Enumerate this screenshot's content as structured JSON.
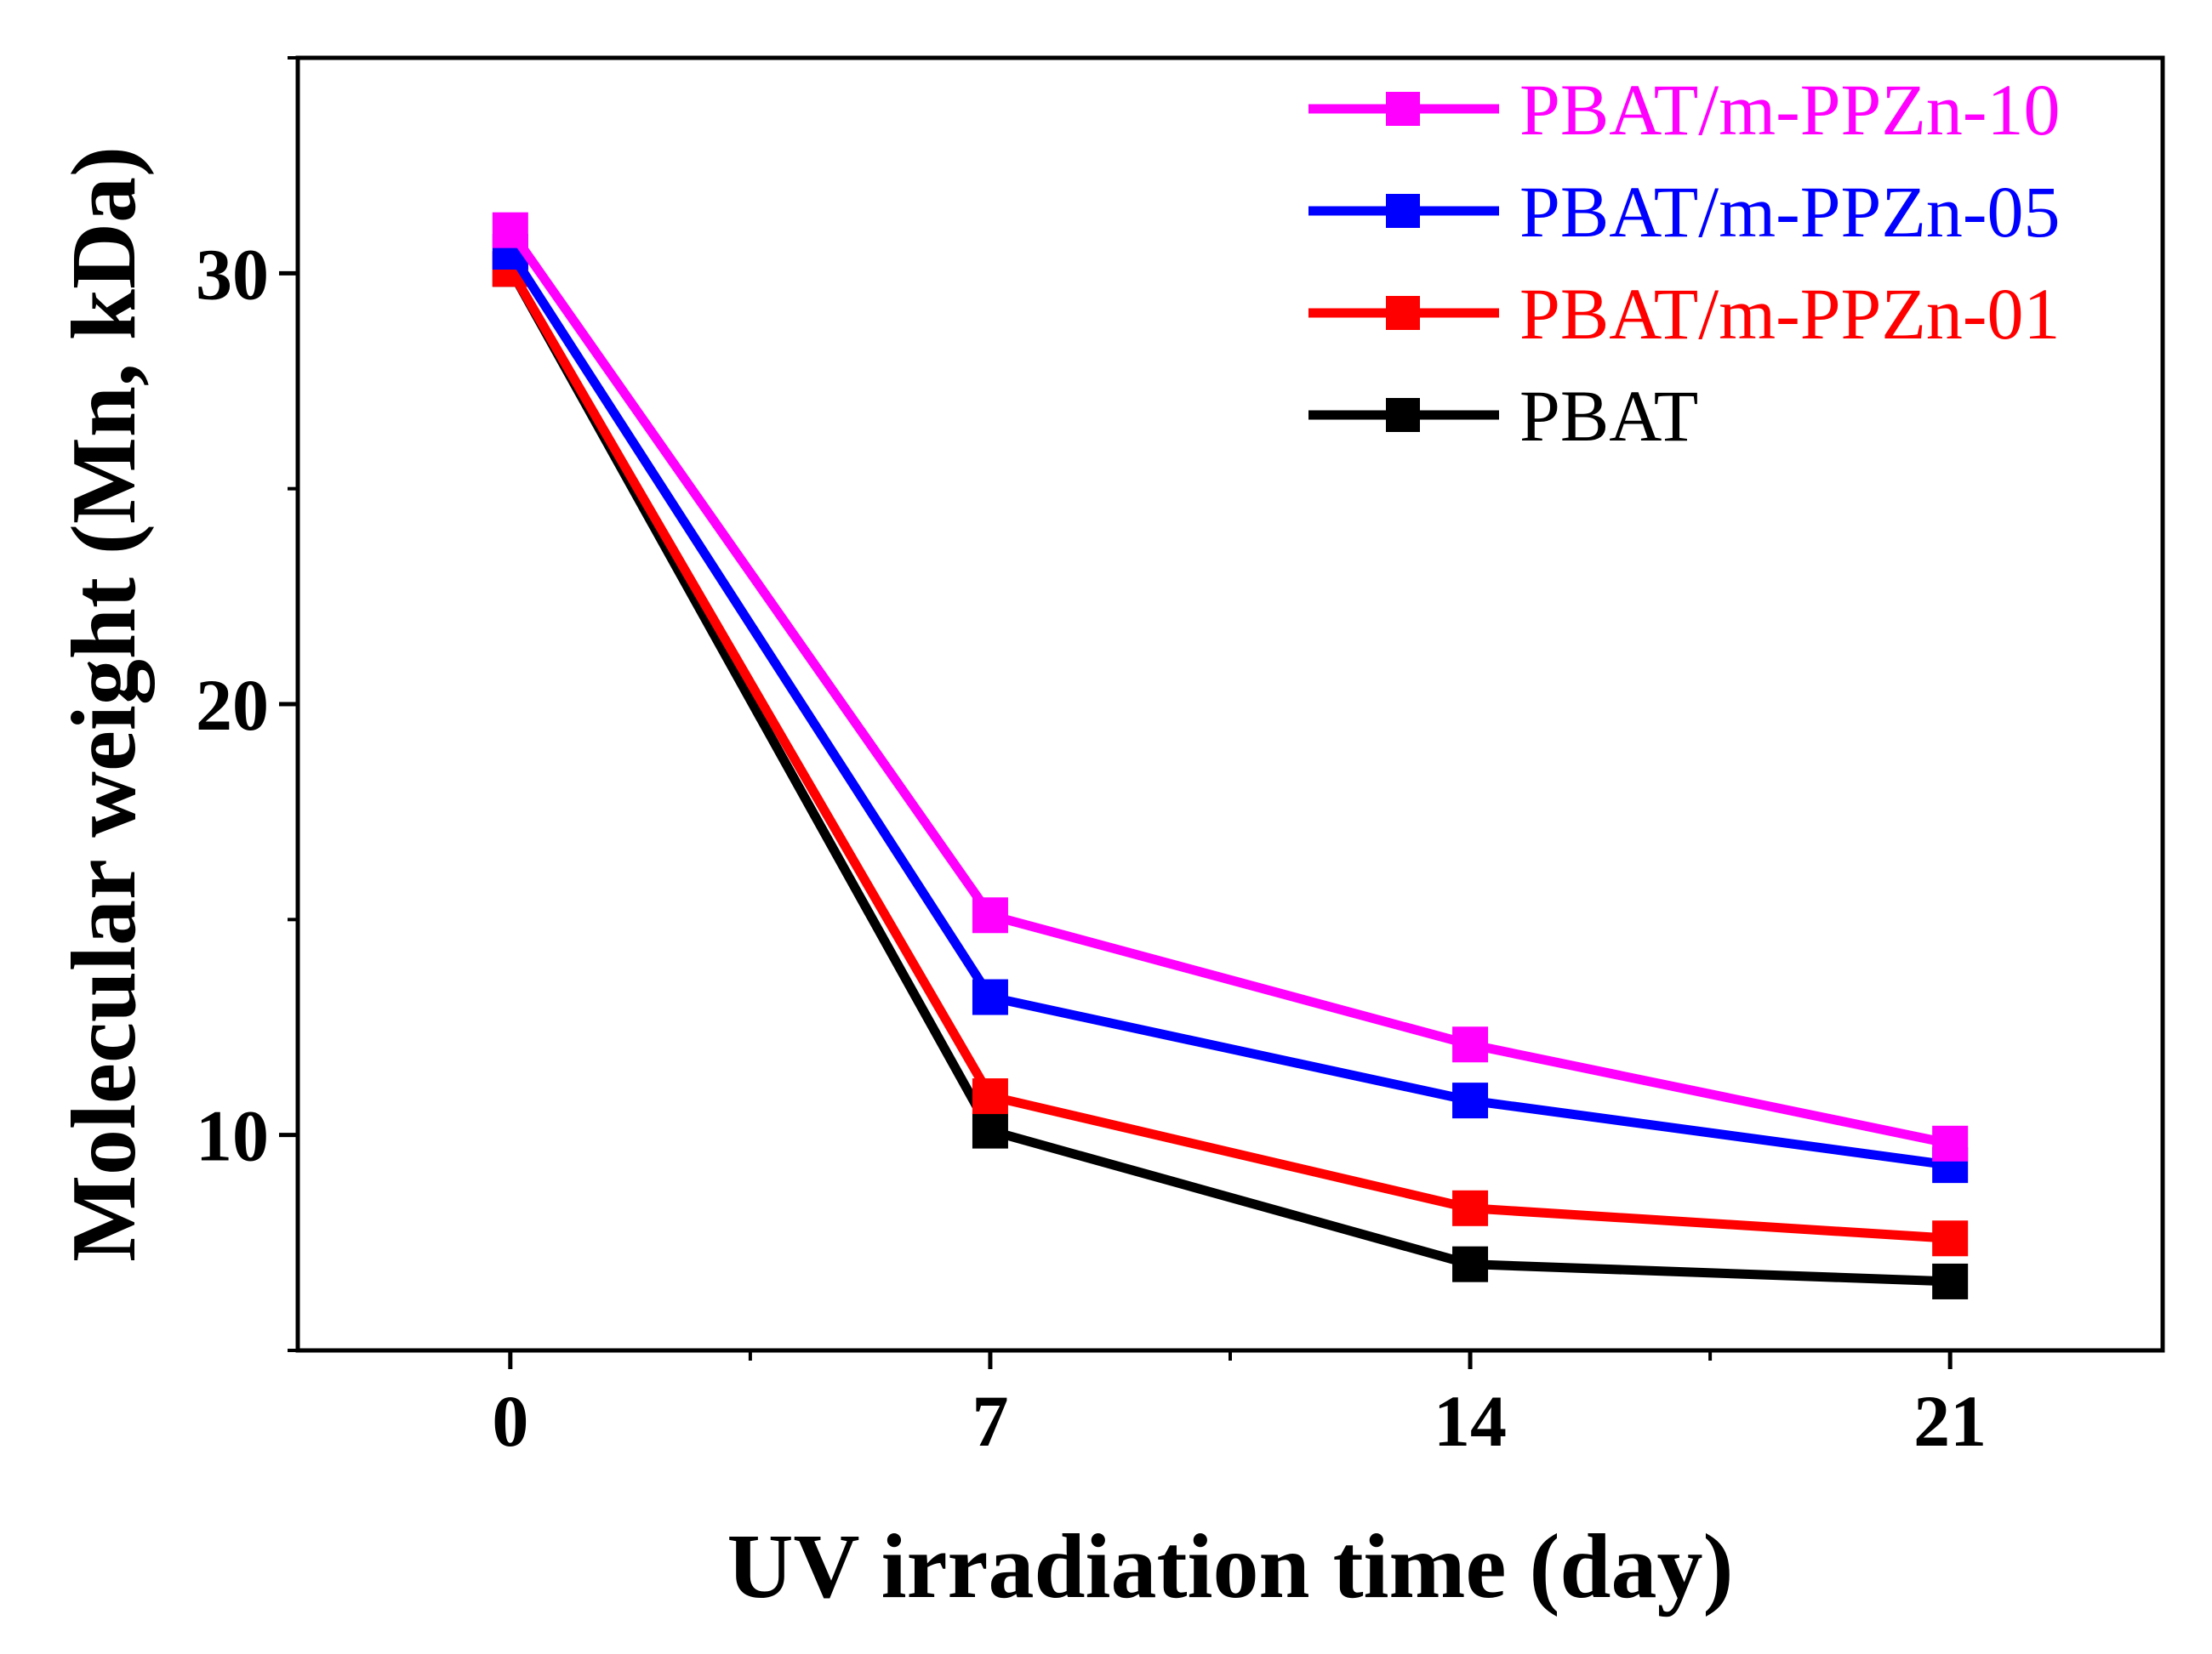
{
  "chart_data": {
    "type": "line",
    "xlabel": "UV irradiation time (day)",
    "ylabel": "Molecular weight (Mn, kDa)",
    "x": [
      0,
      7,
      14,
      21
    ],
    "x_tick_labels": [
      "0",
      "7",
      "14",
      "21"
    ],
    "y_tick_labels": [
      "10",
      "20",
      "30"
    ],
    "xlim": [
      -3.1,
      24.1
    ],
    "ylim": [
      5.0,
      35.0
    ],
    "grid": false,
    "legend_position": "top-right",
    "series": [
      {
        "name": "PBAT/m-PPZn-10",
        "color": "#ff00ff",
        "values": [
          31.0,
          15.1,
          12.1,
          9.8
        ]
      },
      {
        "name": "PBAT/m-PPZn-05",
        "color": "#0000ff",
        "values": [
          30.5,
          13.2,
          10.8,
          9.3
        ]
      },
      {
        "name": "PBAT/m-PPZn-01",
        "color": "#ff0000",
        "values": [
          30.1,
          10.9,
          8.3,
          7.6
        ]
      },
      {
        "name": "PBAT",
        "color": "#000000",
        "values": [
          30.1,
          10.1,
          7.0,
          6.6
        ]
      }
    ]
  }
}
